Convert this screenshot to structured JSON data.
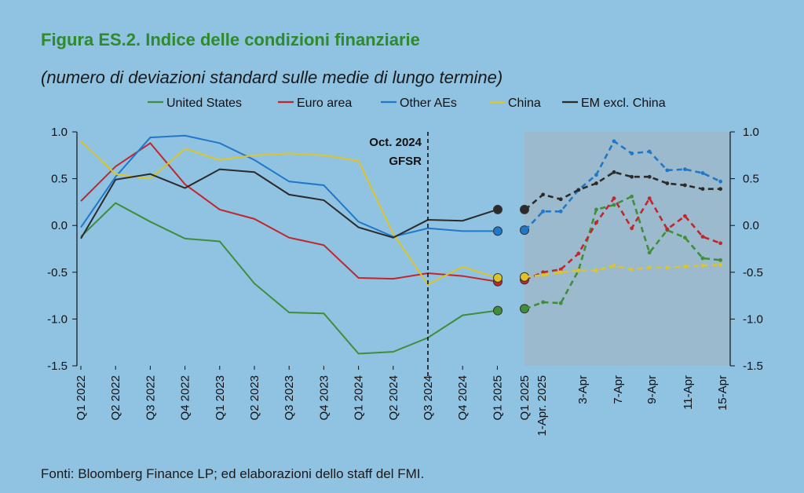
{
  "header": {
    "title": "Figura ES.2. Indice delle condizioni finanziarie",
    "subtitle": "(numero di deviazioni standard sulle medie di lungo termine)"
  },
  "footer": {
    "source": "Fonti: Bloomberg Finance LP; ed elaborazioni dello staff del FMI."
  },
  "chart_data": {
    "type": "line",
    "legend_position": "top",
    "annotation": [
      "Oct. 2024",
      "GFSR"
    ],
    "ylim": [
      -1.5,
      1.0
    ],
    "yticks": [
      "1.0",
      "0.5",
      "0.0",
      "-0.5",
      "-1.0",
      "-1.5"
    ],
    "yticks_values": [
      1.0,
      0.5,
      0.0,
      -0.5,
      -1.0,
      -1.5
    ],
    "quarterly_categories": [
      "Q1 2022",
      "Q2 2022",
      "Q3 2022",
      "Q4 2022",
      "Q1 2023",
      "Q2 2023",
      "Q3 2023",
      "Q4 2023",
      "Q1 2024",
      "Q2 2024",
      "Q3 2024",
      "Q4 2024",
      "Q1 2025"
    ],
    "daily_tick_labels": [
      "Q1 2025",
      "1-Apr. 2025",
      "3-Apr",
      "7-Apr",
      "9-Apr",
      "11-Apr",
      "15-Apr"
    ],
    "series": [
      {
        "name": "United States",
        "color": "#3e8e3a",
        "quarterly": [
          -0.12,
          0.24,
          0.04,
          -0.14,
          -0.17,
          -0.62,
          -0.93,
          -0.94,
          -1.37,
          -1.35,
          -1.2,
          -0.96,
          -0.91
        ],
        "daily": [
          -0.89,
          -0.82,
          -0.83,
          -0.48,
          0.17,
          0.22,
          0.31,
          -0.29,
          -0.05,
          -0.13,
          -0.35,
          -0.37
        ]
      },
      {
        "name": "Euro area",
        "color": "#c0272d",
        "quarterly": [
          0.26,
          0.63,
          0.88,
          0.44,
          0.17,
          0.07,
          -0.13,
          -0.21,
          -0.56,
          -0.57,
          -0.51,
          -0.54,
          -0.6
        ],
        "daily": [
          -0.58,
          -0.5,
          -0.47,
          -0.3,
          0.03,
          0.29,
          -0.03,
          0.29,
          -0.04,
          0.1,
          -0.12,
          -0.19
        ]
      },
      {
        "name": "Other AEs",
        "color": "#1f78c9",
        "quarterly": [
          -0.02,
          0.52,
          0.94,
          0.96,
          0.88,
          0.7,
          0.47,
          0.43,
          0.04,
          -0.12,
          -0.03,
          -0.06,
          -0.06
        ],
        "daily": [
          -0.05,
          0.15,
          0.15,
          0.38,
          0.54,
          0.9,
          0.77,
          0.79,
          0.59,
          0.6,
          0.56,
          0.47
        ]
      },
      {
        "name": "China",
        "color": "#dcc42a",
        "quarterly": [
          0.9,
          0.55,
          0.5,
          0.82,
          0.7,
          0.75,
          0.77,
          0.75,
          0.69,
          -0.09,
          -0.63,
          -0.44,
          -0.56
        ],
        "daily": [
          -0.55,
          -0.53,
          -0.5,
          -0.48,
          -0.48,
          -0.43,
          -0.47,
          -0.45,
          -0.45,
          -0.44,
          -0.43,
          -0.42
        ]
      },
      {
        "name": "EM excl. China",
        "color": "#2b2b2b",
        "quarterly": [
          -0.14,
          0.49,
          0.55,
          0.4,
          0.6,
          0.57,
          0.33,
          0.27,
          -0.02,
          -0.13,
          0.06,
          0.05,
          0.17
        ],
        "daily": [
          0.17,
          0.33,
          0.28,
          0.38,
          0.45,
          0.57,
          0.52,
          0.52,
          0.45,
          0.43,
          0.39,
          0.39
        ]
      }
    ]
  }
}
